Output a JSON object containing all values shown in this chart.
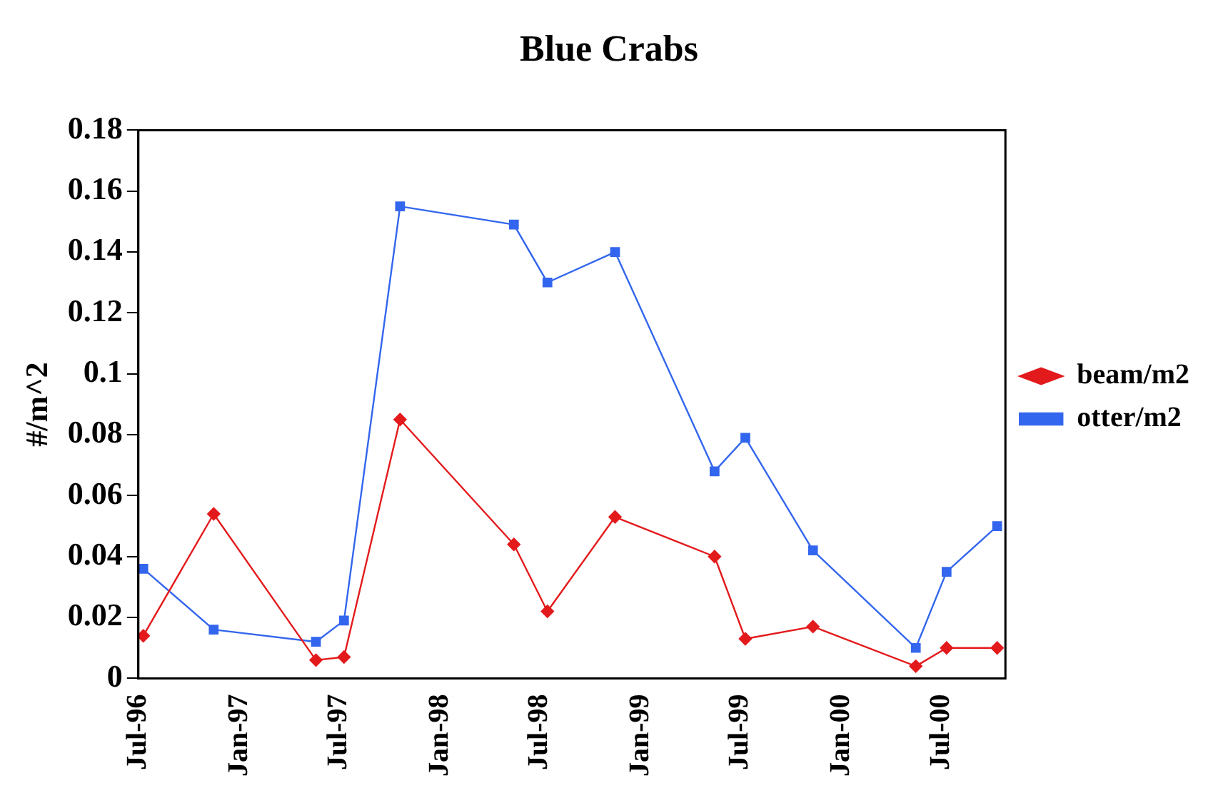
{
  "chart_data": {
    "type": "line",
    "title": "Blue Crabs",
    "ylabel": "#/m^2",
    "xlim": [
      "1996-07-01",
      "2000-10-25"
    ],
    "xticks": [
      {
        "value": "1996-07-01",
        "label": "Jul-96"
      },
      {
        "value": "1997-01-01",
        "label": "Jan-97"
      },
      {
        "value": "1997-07-01",
        "label": "Jul-97"
      },
      {
        "value": "1998-01-01",
        "label": "Jan-98"
      },
      {
        "value": "1998-07-01",
        "label": "Jul-98"
      },
      {
        "value": "1999-01-01",
        "label": "Jan-99"
      },
      {
        "value": "1999-07-01",
        "label": "Jul-99"
      },
      {
        "value": "2000-01-01",
        "label": "Jan-00"
      },
      {
        "value": "2000-07-01",
        "label": "Jul-00"
      }
    ],
    "ylim": [
      0,
      0.18
    ],
    "yticks": [
      0,
      0.02,
      0.04,
      0.06,
      0.08,
      0.1,
      0.12,
      0.14,
      0.16,
      0.18
    ],
    "grid": false,
    "legend": "right",
    "x": [
      "1996-07-10",
      "1996-11-15",
      "1997-05-20",
      "1997-07-10",
      "1997-10-20",
      "1998-05-15",
      "1998-07-15",
      "1998-11-15",
      "1999-05-15",
      "1999-07-10",
      "1999-11-10",
      "2000-05-15",
      "2000-07-10",
      "2000-10-10"
    ],
    "series": [
      {
        "name": "beam/m2",
        "color": "#e31a1c",
        "marker": "diamond",
        "values": [
          0.014,
          0.054,
          0.006,
          0.007,
          0.085,
          0.044,
          0.022,
          0.053,
          0.04,
          0.013,
          0.017,
          0.004,
          0.01,
          0.01
        ]
      },
      {
        "name": "otter/m2",
        "color": "#3366ee",
        "marker": "square",
        "values": [
          0.036,
          0.016,
          0.012,
          0.019,
          0.155,
          0.149,
          0.13,
          0.14,
          0.068,
          0.079,
          0.042,
          0.01,
          0.035,
          0.05
        ]
      }
    ]
  }
}
